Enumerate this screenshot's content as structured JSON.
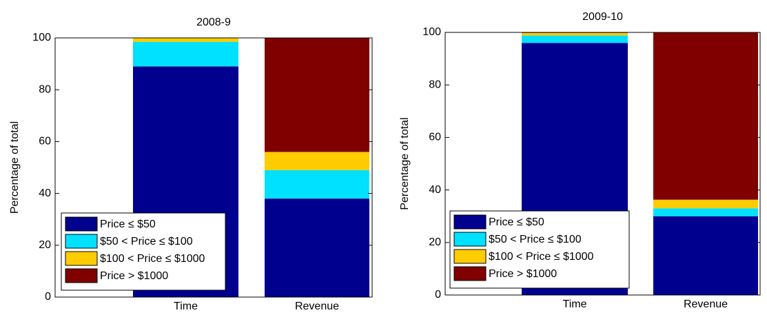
{
  "chart_data": [
    {
      "type": "stacked-bar",
      "title": "2008-9",
      "y_label": "Percentage of total",
      "categories": [
        "Time",
        "Revenue"
      ],
      "series": [
        {
          "name": "Price ≤ $50",
          "color": "#00008f",
          "values": [
            89,
            38
          ]
        },
        {
          "name": "$50 < Price ≤ $100",
          "color": "#00e1ff",
          "values": [
            9.5,
            11
          ]
        },
        {
          "name": "$100 < Price ≤ $1000",
          "color": "#ffcc00",
          "values": [
            1.5,
            7
          ]
        },
        {
          "name": "Price > $1000",
          "color": "#800000",
          "values": [
            0,
            44
          ]
        }
      ],
      "ylim": [
        0,
        100
      ],
      "yticks": [
        0,
        20,
        40,
        60,
        80,
        100
      ],
      "legend": "lower left"
    },
    {
      "type": "stacked-bar",
      "title": "2009-10",
      "y_label": "Percentage of total",
      "categories": [
        "Time",
        "Revenue"
      ],
      "series": [
        {
          "name": "Price ≤ $50",
          "color": "#00008f",
          "values": [
            96,
            30
          ]
        },
        {
          "name": "$50 < Price ≤ $100",
          "color": "#00e1ff",
          "values": [
            2.8,
            3
          ]
        },
        {
          "name": "$100 < Price ≤ $1000",
          "color": "#ffcc00",
          "values": [
            1,
            3.3
          ]
        },
        {
          "name": "Price > $1000",
          "color": "#800000",
          "values": [
            0.2,
            63.7
          ]
        }
      ],
      "ylim": [
        0,
        100
      ],
      "yticks": [
        0,
        20,
        40,
        60,
        80,
        100
      ],
      "legend": "lower left"
    }
  ]
}
